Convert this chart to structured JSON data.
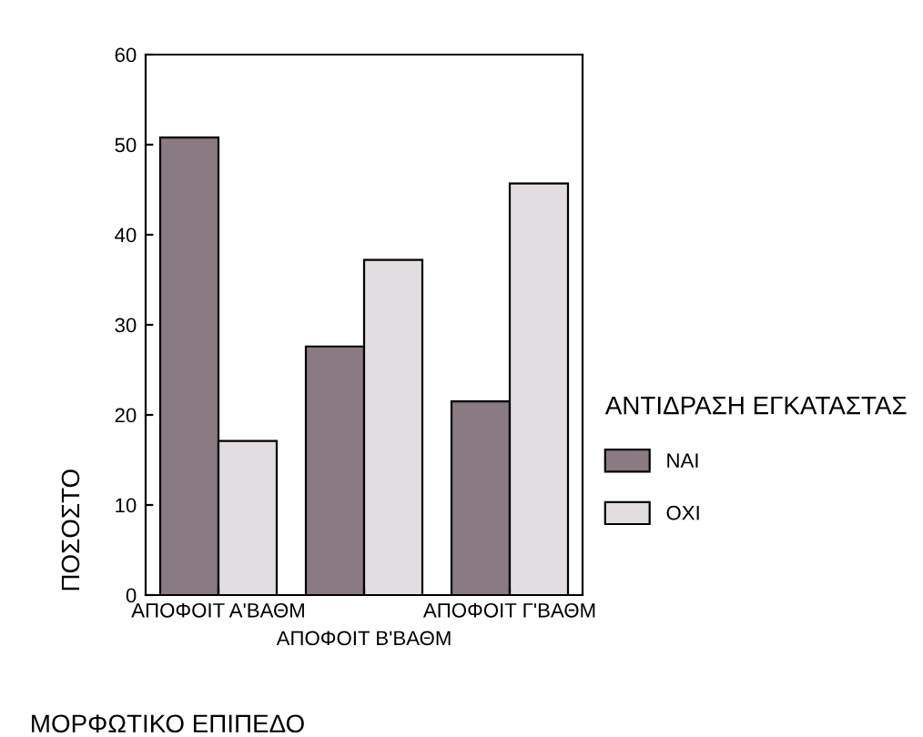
{
  "chart_data": {
    "type": "bar",
    "xlabel": "ΜΟΡΦΩΤΙΚΟ ΕΠΙΠΕΔΟ",
    "ylabel": "ΠΟΣΟΣΤΟ",
    "legend_title": "ΑΝΤΙΔΡΑΣΗ ΕΓΚΑΤΑΣΤΑΣ",
    "categories": [
      "ΑΠΟΦΟΙΤ Α'ΒΑΘΜ",
      "ΑΠΟΦΟΙΤ Β'ΒΑΘΜ",
      "ΑΠΟΦΟΙΤ Γ'ΒΑΘΜ"
    ],
    "series": [
      {
        "name": "ΝΑΙ",
        "color": "#8a7a82",
        "values": [
          50.8,
          27.6,
          21.5
        ]
      },
      {
        "name": "ΟΧΙ",
        "color": "#e2dde0",
        "values": [
          17.1,
          37.2,
          45.7
        ]
      }
    ],
    "ylim": [
      0,
      60
    ],
    "yticks": [
      0,
      10,
      20,
      30,
      40,
      50,
      60
    ],
    "grid": false,
    "legend": "right"
  }
}
